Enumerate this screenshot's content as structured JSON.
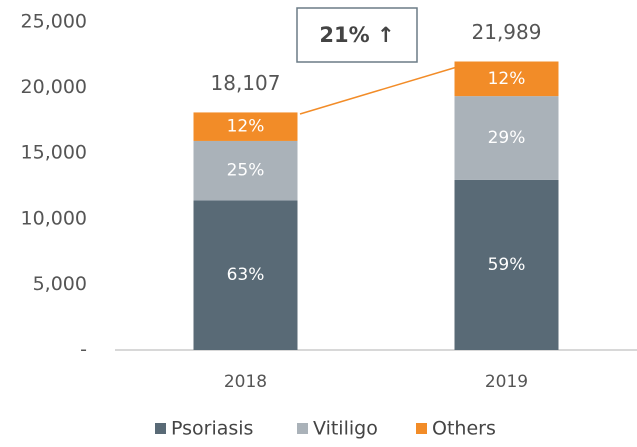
{
  "chart_data": {
    "type": "stacked_bar",
    "categories": [
      "2018",
      "2019"
    ],
    "series": [
      {
        "name": "Psoriasis",
        "color": "#596a76",
        "values": [
          11407,
          12973
        ],
        "value_labels": [
          "63%",
          "59%"
        ]
      },
      {
        "name": "Vitiligo",
        "color": "#aab2b9",
        "values": [
          4527,
          6377
        ],
        "value_labels": [
          "25%",
          "29%"
        ]
      },
      {
        "name": "Others",
        "color": "#f28c28",
        "values": [
          2173,
          2639
        ],
        "value_labels": [
          "12%",
          "12%"
        ]
      }
    ],
    "totals": [
      18107,
      21989
    ],
    "total_labels": [
      "18,107",
      "21,989"
    ],
    "annotation": "21% ↑",
    "ylim": [
      0,
      25000
    ],
    "yticks": [
      {
        "value": 0,
        "label": "-"
      },
      {
        "value": 5000,
        "label": "5,000"
      },
      {
        "value": 10000,
        "label": "10,000"
      },
      {
        "value": 15000,
        "label": "15,000"
      },
      {
        "value": 20000,
        "label": "20,000"
      },
      {
        "value": 25000,
        "label": "25,000"
      }
    ],
    "grid": false,
    "legend": "bottom"
  }
}
